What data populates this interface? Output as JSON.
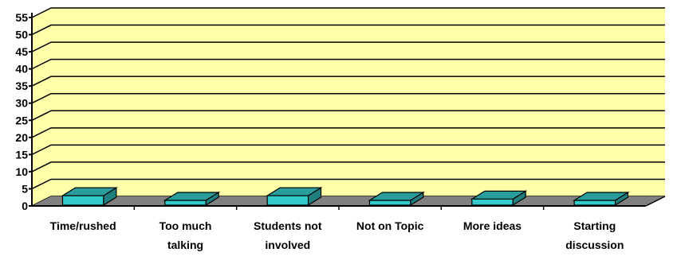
{
  "chart_data": {
    "type": "bar",
    "categories": [
      [
        "Time/rushed"
      ],
      [
        "Too much",
        "talking"
      ],
      [
        "Students not",
        "involved"
      ],
      [
        "Not on Topic"
      ],
      [
        "More ideas"
      ],
      [
        "Starting",
        "discussion"
      ]
    ],
    "values": [
      3,
      1,
      3,
      0,
      2,
      0
    ],
    "ylim": [
      0,
      55
    ],
    "yticks": [
      0,
      5,
      10,
      15,
      20,
      25,
      30,
      35,
      40,
      45,
      50,
      55
    ],
    "grid": true,
    "legend": "none",
    "style": "3d-column",
    "colors": {
      "wall": "#FFFFAA",
      "floor": "#808080",
      "bar_front": "#33CCCC",
      "bar_top": "#2A9C9C",
      "bar_side": "#1F7F7F",
      "grid": "#000000",
      "axis": "#000000"
    }
  }
}
